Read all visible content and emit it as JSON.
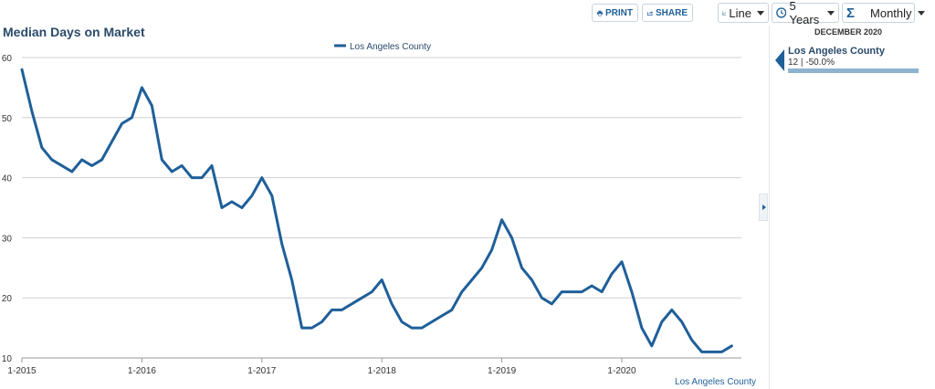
{
  "toolbar": {
    "print_label": "PRINT",
    "share_label": "SHARE",
    "chart_type": "Line",
    "range": "5 Years",
    "interval": "Monthly"
  },
  "side_panel": {
    "date": "DECEMBER 2020",
    "series_name": "Los Angeles County",
    "value_text": "12 | -50.0%"
  },
  "colors": {
    "series": "#1f5f99",
    "grid": "#d0d0d0",
    "title": "#2a4a6b"
  },
  "chart_data": {
    "type": "line",
    "title": "Median Days on Market",
    "legend": [
      "Los Angeles County"
    ],
    "legend_position": "top-center",
    "source_label": "Los Angeles County",
    "y_ticks": [
      10,
      20,
      30,
      40,
      50,
      60
    ],
    "x_ticks": [
      "1-2015",
      "1-2016",
      "1-2017",
      "1-2018",
      "1-2019",
      "1-2020"
    ],
    "ylim": [
      10,
      60
    ],
    "grid": true,
    "x_start": "2015-01",
    "x_end": "2020-12",
    "series": [
      {
        "name": "Los Angeles County",
        "values": [
          58,
          51,
          45,
          43,
          42,
          41,
          43,
          42,
          43,
          46,
          49,
          50,
          55,
          52,
          43,
          41,
          42,
          40,
          40,
          42,
          35,
          36,
          35,
          37,
          40,
          37,
          29,
          23,
          15,
          15,
          16,
          18,
          18,
          19,
          20,
          21,
          23,
          19,
          16,
          15,
          15,
          16,
          17,
          18,
          21,
          23,
          25,
          28,
          33,
          30,
          25,
          23,
          20,
          19,
          21,
          21,
          21,
          22,
          21,
          24,
          26,
          21,
          15,
          12,
          16,
          18,
          16,
          13,
          11,
          11,
          11,
          12
        ]
      }
    ]
  }
}
